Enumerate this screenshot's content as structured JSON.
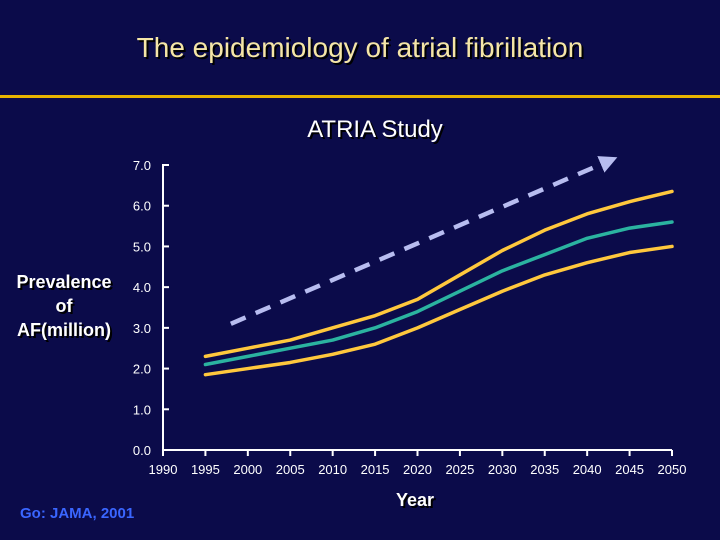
{
  "page": {
    "title": "The epidemiology of atrial fibrillation"
  },
  "chart_data": {
    "type": "line",
    "title": "ATRIA Study",
    "ylabel": "Prevalence\nof\nAF(million)",
    "xlabel": "Year",
    "source": "Go:  JAMA, 2001",
    "ylim": [
      0,
      7
    ],
    "xlim": [
      1990,
      2050
    ],
    "y_ticks": [
      "0.0",
      "1.0",
      "2.0",
      "3.0",
      "4.0",
      "5.0",
      "6.0",
      "7.0"
    ],
    "x_ticks": [
      "1990",
      "1995",
      "2000",
      "2005",
      "2010",
      "2015",
      "2020",
      "2025",
      "2030",
      "2035",
      "2040",
      "2045",
      "2050"
    ],
    "x": [
      1995,
      2000,
      2005,
      2010,
      2015,
      2020,
      2025,
      2030,
      2035,
      2040,
      2045,
      2050
    ],
    "series": [
      {
        "color": "#ffc83d",
        "values": [
          2.3,
          2.5,
          2.7,
          3.0,
          3.3,
          3.7,
          4.3,
          4.9,
          5.4,
          5.8,
          6.1,
          6.35
        ]
      },
      {
        "color": "#2bb3a0",
        "values": [
          2.1,
          2.3,
          2.5,
          2.7,
          3.0,
          3.4,
          3.9,
          4.4,
          4.8,
          5.2,
          5.45,
          5.6
        ]
      },
      {
        "color": "#ffc83d",
        "values": [
          1.85,
          2.0,
          2.15,
          2.35,
          2.6,
          3.0,
          3.45,
          3.9,
          4.3,
          4.6,
          4.85,
          5.0
        ]
      }
    ],
    "trend": {
      "color": "#b8bdf0",
      "style": "dashed-arrow",
      "x": [
        1998,
        2042
      ],
      "y": [
        3.1,
        7.05
      ]
    },
    "grid": false,
    "legend": "none"
  }
}
